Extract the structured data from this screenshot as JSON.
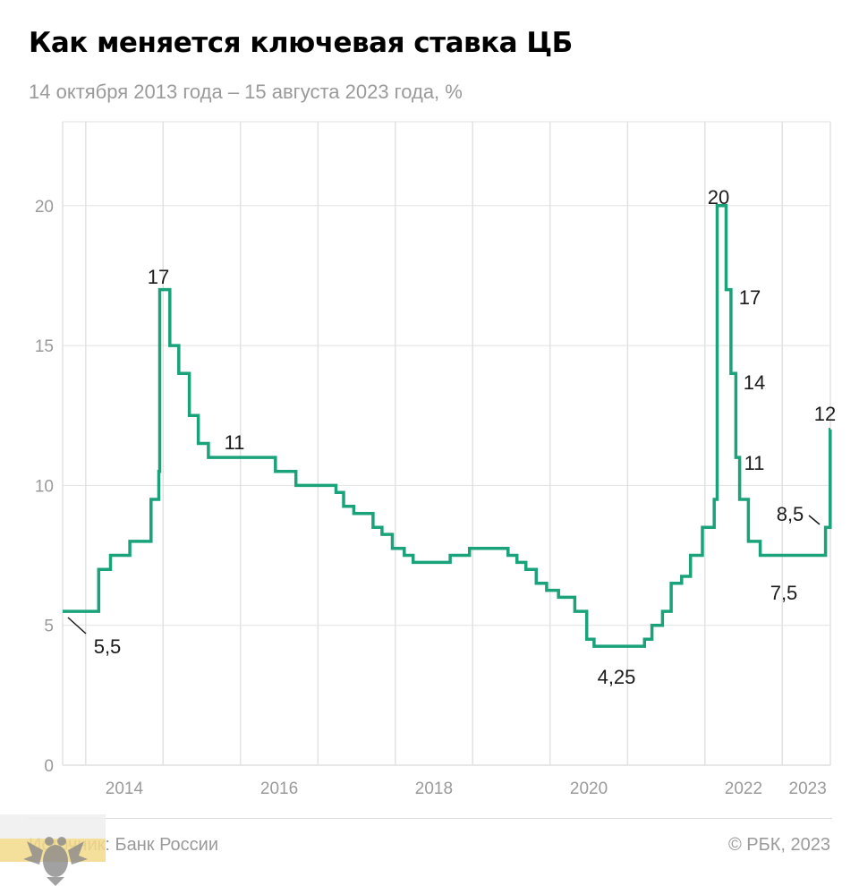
{
  "title": "Как меняется ключевая ставка ЦБ",
  "subtitle": "14 октября 2013 года – 15 августа 2023 года, %",
  "footer": {
    "source": "Источник: Банк России",
    "copyright": "© РБК, 2023"
  },
  "colors": {
    "line": "#1aa37a",
    "grid": "#e2e2e2",
    "axis": "#9a9a9a",
    "text": "#1a1a1a"
  },
  "chart_data": {
    "type": "line",
    "step": true,
    "title": "Как меняется ключевая ставка ЦБ",
    "subtitle": "14 октября 2013 года – 15 августа 2023 года, %",
    "xlabel": "",
    "ylabel": "",
    "xlim": [
      "2013-09-14",
      "2023-08-16"
    ],
    "ylim": [
      0,
      23
    ],
    "y_ticks": [
      0,
      5,
      10,
      15,
      20
    ],
    "x_ticks": [
      "2014",
      "2016",
      "2018",
      "2020",
      "2022",
      "2023"
    ],
    "grid": true,
    "series": [
      {
        "x": [
          "2013-09-14",
          "2014-03-03",
          "2014-04-28",
          "2014-07-28",
          "2014-11-05",
          "2014-12-12",
          "2014-12-16",
          "2015-02-02",
          "2015-03-16",
          "2015-05-05",
          "2015-06-16",
          "2015-08-03",
          "2016-06-14",
          "2016-09-19",
          "2017-03-27",
          "2017-05-02",
          "2017-06-19",
          "2017-09-18",
          "2017-10-30",
          "2017-12-18",
          "2018-02-12",
          "2018-03-26",
          "2018-09-17",
          "2018-12-17",
          "2019-06-17",
          "2019-07-29",
          "2019-09-09",
          "2019-10-28",
          "2019-12-16",
          "2020-02-10",
          "2020-04-27",
          "2020-06-22",
          "2020-07-27",
          "2021-03-22",
          "2021-04-26",
          "2021-06-15",
          "2021-07-26",
          "2021-09-13",
          "2021-10-25",
          "2021-12-20",
          "2022-02-14",
          "2022-02-28",
          "2022-04-11",
          "2022-05-04",
          "2022-05-27",
          "2022-06-14",
          "2022-07-25",
          "2022-09-19",
          "2023-07-24",
          "2023-08-15",
          "2023-08-16"
        ],
        "values": [
          5.5,
          7,
          7.5,
          8,
          9.5,
          10.5,
          17,
          15,
          14,
          12.5,
          11.5,
          11,
          10.5,
          10,
          9.75,
          9.25,
          9,
          8.5,
          8.25,
          7.75,
          7.5,
          7.25,
          7.5,
          7.75,
          7.5,
          7.25,
          7,
          6.5,
          6.25,
          6,
          5.5,
          4.5,
          4.25,
          4.5,
          5,
          5.5,
          6.5,
          6.75,
          7.5,
          8.5,
          9.5,
          20,
          17,
          14,
          11,
          9.5,
          8,
          7.5,
          8.5,
          12,
          12
        ]
      }
    ],
    "annotations": [
      "5,5",
      "17",
      "11",
      "4,25",
      "20",
      "17",
      "14",
      "11",
      "7,5",
      "8,5",
      "12"
    ]
  }
}
